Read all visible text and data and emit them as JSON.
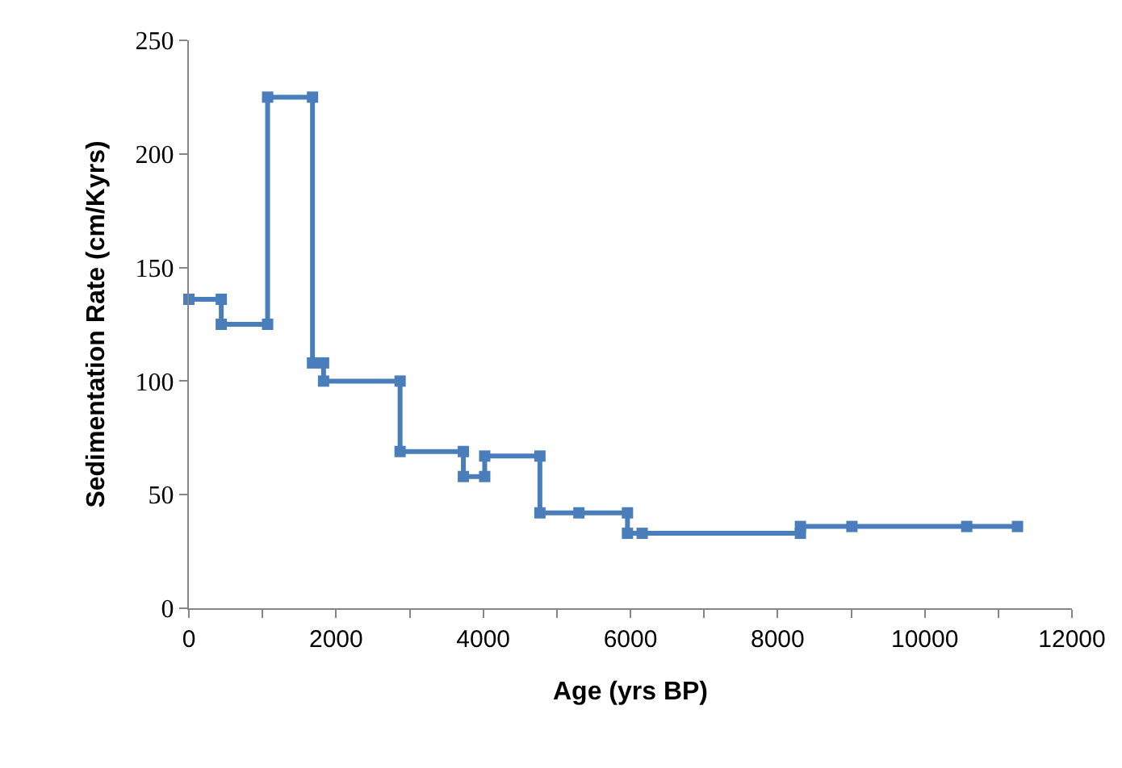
{
  "chart_data": {
    "type": "line",
    "xlabel": "Age (yrs BP)",
    "ylabel": "Sedimentation Rate (cm/Kyrs)",
    "x": [
      0,
      440,
      440,
      1070,
      1070,
      1680,
      1680,
      1830,
      1830,
      2870,
      2870,
      3730,
      3730,
      4020,
      4020,
      4770,
      4770,
      5300,
      5960,
      5960,
      6160,
      8310,
      8310,
      9010,
      10570,
      11260
    ],
    "series": [
      {
        "color": "#4a7ebb",
        "values": [
          136,
          136,
          125,
          125,
          225,
          225,
          108,
          108,
          100,
          100,
          69,
          69,
          58,
          58,
          67,
          67,
          42,
          42,
          42,
          33,
          33,
          33,
          36,
          36,
          36,
          36
        ]
      }
    ],
    "xlim": [
      0,
      12000
    ],
    "xticks": [
      0,
      {
        "value": 1000,
        "label": null
      },
      2000,
      {
        "value": 3000,
        "label": null
      },
      4000,
      {
        "value": 5000,
        "label": null
      },
      6000,
      {
        "value": 7000,
        "label": null
      },
      8000,
      {
        "value": 9000,
        "label": null
      },
      10000,
      {
        "value": 11000,
        "label": null
      },
      12000
    ],
    "ylim": [
      0,
      250
    ],
    "yticks": [
      0,
      50,
      100,
      150,
      200,
      250
    ],
    "grid": false,
    "marker": "square",
    "line_style": "solid"
  }
}
